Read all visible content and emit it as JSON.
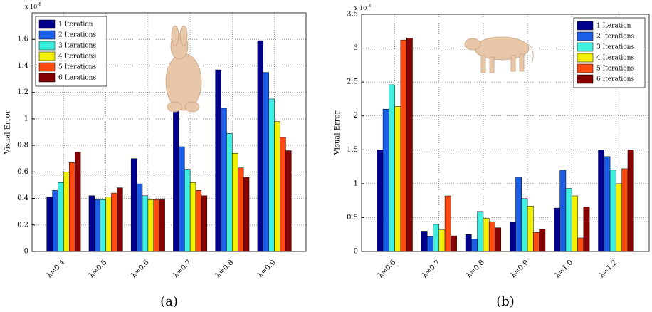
{
  "chart_data": [
    {
      "type": "bar",
      "caption": "(a)",
      "y_label": "Visual Error",
      "exponent_base": "x 10",
      "exponent": "-8",
      "categories": [
        "λ=0.4",
        "λ=0.5",
        "λ=0.6",
        "λ=0.7",
        "λ=0.8",
        "λ=0.9"
      ],
      "series": [
        {
          "name": "1 Iteration",
          "color": "#00008c",
          "values": [
            0.41,
            0.42,
            0.7,
            1.06,
            1.37,
            1.59
          ]
        },
        {
          "name": "2 Iterations",
          "color": "#1a5ee8",
          "values": [
            0.46,
            0.39,
            0.51,
            0.79,
            1.08,
            1.35
          ]
        },
        {
          "name": "3 Iterations",
          "color": "#3ff0e0",
          "values": [
            0.52,
            0.39,
            0.42,
            0.62,
            0.89,
            1.15
          ]
        },
        {
          "name": "4 Iterations",
          "color": "#f0f000",
          "values": [
            0.6,
            0.41,
            0.39,
            0.52,
            0.74,
            0.98
          ]
        },
        {
          "name": "5 Iterations",
          "color": "#ff4a10",
          "values": [
            0.67,
            0.44,
            0.39,
            0.46,
            0.63,
            0.86
          ]
        },
        {
          "name": "6 Iterations",
          "color": "#850000",
          "values": [
            0.75,
            0.48,
            0.39,
            0.42,
            0.56,
            0.76
          ]
        }
      ],
      "ylim": [
        0,
        1.8
      ],
      "yticks": [
        0,
        0.2,
        0.4,
        0.6,
        0.8,
        1,
        1.2,
        1.4,
        1.6
      ],
      "grid": true,
      "legend": "top-left"
    },
    {
      "type": "bar",
      "caption": "(b)",
      "y_label": "Visual Error",
      "exponent_base": "x 10",
      "exponent": "-3",
      "categories": [
        "λ=0.6",
        "λ=0.7",
        "λ=0.8",
        "λ=0.9",
        "λ=1.0",
        "λ=1.2"
      ],
      "series": [
        {
          "name": "1 Iteration",
          "color": "#00008c",
          "values": [
            1.5,
            0.3,
            0.25,
            0.43,
            0.64,
            1.5
          ]
        },
        {
          "name": "2 Iterations",
          "color": "#1a5ee8",
          "values": [
            2.1,
            0.22,
            0.18,
            1.1,
            1.2,
            1.4
          ]
        },
        {
          "name": "3 Iterations",
          "color": "#3ff0e0",
          "values": [
            2.46,
            0.4,
            0.59,
            0.78,
            0.93,
            1.2
          ]
        },
        {
          "name": "4 Iterations",
          "color": "#f0f000",
          "values": [
            2.14,
            0.32,
            0.49,
            0.67,
            0.82,
            1.0
          ]
        },
        {
          "name": "5 Iterations",
          "color": "#ff4a10",
          "values": [
            3.12,
            0.82,
            0.44,
            0.28,
            0.2,
            1.22
          ]
        },
        {
          "name": "6 Iterations",
          "color": "#850000",
          "values": [
            3.15,
            0.23,
            0.35,
            0.33,
            0.66,
            1.5
          ]
        }
      ],
      "ylim": [
        0,
        3.5
      ],
      "yticks": [
        0,
        0.5,
        1,
        1.5,
        2,
        2.5,
        3,
        3.5
      ],
      "grid": true,
      "legend": "top-right"
    }
  ]
}
